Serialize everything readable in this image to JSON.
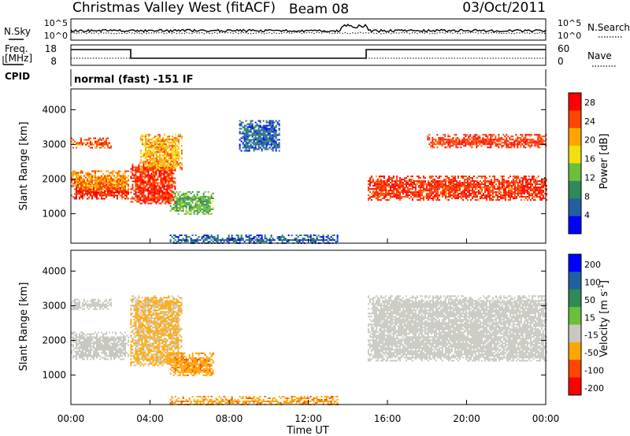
{
  "header": {
    "site": "Christmas Valley West (fitACF)",
    "beam": "Beam 08",
    "date": "03/Oct/2011"
  },
  "noise_panel": {
    "label": "N.Sky",
    "right_label": "N.Search",
    "y_top": "10^5",
    "y_bottom": "10^0",
    "y_right_top": "10^5",
    "y_right_bottom": "10^0"
  },
  "freq_panel": {
    "label_line1": "Freq.",
    "label_line2": "[MHz]",
    "y_top": "18",
    "y_bottom": "8",
    "right_label": "Nave",
    "y_right_top": "60",
    "y_right_bottom": "0"
  },
  "cpid_panel": {
    "label": "CPID",
    "text": "normal (fast) -151 IF"
  },
  "chart_data": [
    {
      "type": "heatmap",
      "id": "power",
      "ylabel": "Slant Range [km]",
      "y_ticks": [
        1000,
        2000,
        3000,
        4000
      ],
      "ylim": [
        150,
        4600
      ],
      "colorbar_label": "Power [dB]",
      "colorbar_ticks": [
        4,
        8,
        12,
        16,
        20,
        24,
        28
      ],
      "colorbar_range": [
        0,
        30
      ],
      "colors": [
        "#0000ff",
        "#2060a0",
        "#2e8b57",
        "#6bbf3a",
        "#f0e010",
        "#ffa500",
        "#ff4500",
        "#ff0000"
      ],
      "regions": [
        {
          "name": "lower band early",
          "t": [
            0.0,
            2.9
          ],
          "range": [
            1450,
            2000
          ],
          "value": 26
        },
        {
          "name": "lower band early (mid)",
          "t": [
            0.0,
            2.9
          ],
          "range": [
            1700,
            2250
          ],
          "value": 22
        },
        {
          "name": "upper band early",
          "t": [
            0.0,
            2.0
          ],
          "range": [
            2900,
            3200
          ],
          "value": 24
        },
        {
          "name": "rising arc",
          "t": [
            3.0,
            5.3
          ],
          "range": [
            1300,
            2500
          ],
          "value": 26
        },
        {
          "name": "rising arc upper",
          "t": [
            3.5,
            5.6
          ],
          "range": [
            2300,
            3300
          ],
          "value": 20
        },
        {
          "name": "patch",
          "t": [
            5.0,
            7.2
          ],
          "range": [
            1000,
            1650
          ],
          "value": 12
        },
        {
          "name": "scattered",
          "t": [
            8.5,
            10.5
          ],
          "range": [
            2800,
            3700
          ],
          "value": 6
        },
        {
          "name": "near range",
          "t": [
            5.0,
            13.5
          ],
          "range": [
            150,
            400
          ],
          "value": 6
        },
        {
          "name": "post-sunrise lower",
          "t": [
            15.0,
            24.0
          ],
          "range": [
            1400,
            2100
          ],
          "value": 26
        },
        {
          "name": "post-sunrise upper",
          "t": [
            18.0,
            24.0
          ],
          "range": [
            2900,
            3300
          ],
          "value": 26
        }
      ]
    },
    {
      "type": "heatmap",
      "id": "velocity",
      "ylabel": "Slant Range [km]",
      "y_ticks": [
        1000,
        2000,
        3000,
        4000
      ],
      "ylim": [
        150,
        4600
      ],
      "colorbar_label": "Velocity [m s^-1]",
      "colorbar_ticks": [
        200,
        100,
        50,
        15,
        -15,
        -50,
        -100,
        -200
      ],
      "colors": [
        "#0000ff",
        "#2060a0",
        "#2e8b57",
        "#6bbf3a",
        "#c8c8c0",
        "#ffa500",
        "#ff4500",
        "#ff0000"
      ],
      "regions": [
        {
          "name": "lower band early",
          "t": [
            0.0,
            2.9
          ],
          "range": [
            1450,
            2250
          ],
          "value": 0
        },
        {
          "name": "upper band early",
          "t": [
            0.0,
            2.0
          ],
          "range": [
            2900,
            3200
          ],
          "value": 0
        },
        {
          "name": "rising arc",
          "t": [
            3.0,
            5.6
          ],
          "range": [
            1300,
            3300
          ],
          "value": -20
        },
        {
          "name": "patch",
          "t": [
            5.0,
            7.2
          ],
          "range": [
            1000,
            1650
          ],
          "value": -40
        },
        {
          "name": "near range",
          "t": [
            5.0,
            13.5
          ],
          "range": [
            150,
            400
          ],
          "value": -40
        },
        {
          "name": "post-sunrise",
          "t": [
            15.0,
            24.0
          ],
          "range": [
            1400,
            3300
          ],
          "value": 0
        }
      ]
    }
  ],
  "x_axis": {
    "ticks": [
      "00:00",
      "04:00",
      "08:00",
      "12:00",
      "16:00",
      "20:00",
      "00:00"
    ],
    "tick_hours": [
      0,
      4,
      8,
      12,
      16,
      20,
      24
    ],
    "label": "Time UT"
  }
}
